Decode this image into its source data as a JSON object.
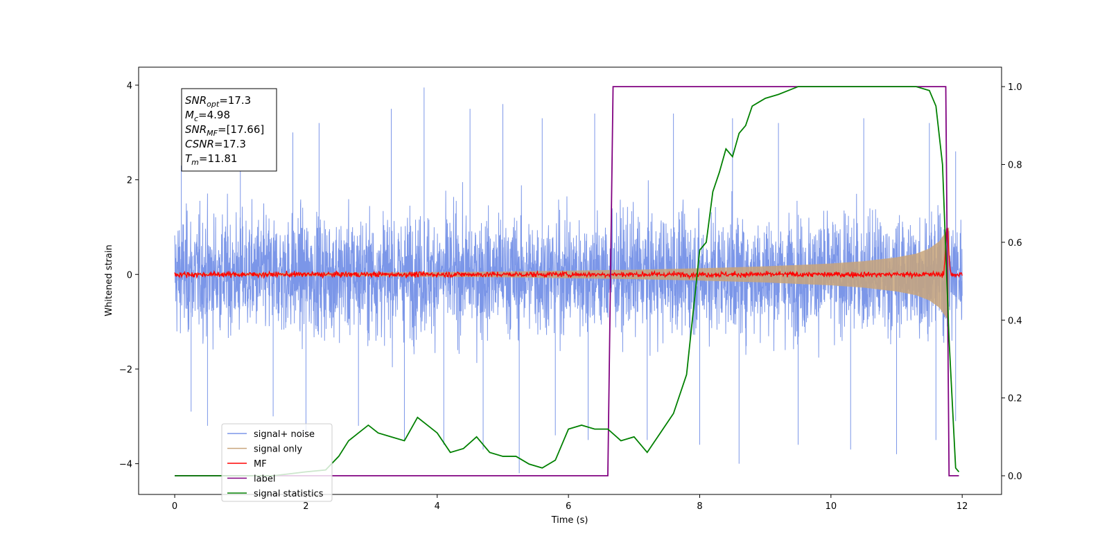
{
  "chart_data": {
    "type": "line",
    "xlabel": "Time (s)",
    "ylabel": "Whitened strain",
    "xlim": [
      -0.55,
      12.6
    ],
    "ylim": [
      -4.65,
      4.38
    ],
    "y2lim": [
      -0.048,
      1.05
    ],
    "x_ticks": [
      0,
      2,
      4,
      6,
      8,
      10,
      12
    ],
    "x_tick_labels": [
      "0",
      "2",
      "4",
      "6",
      "8",
      "10",
      "12"
    ],
    "y_ticks": [
      -4,
      -2,
      0,
      2,
      4
    ],
    "y_tick_labels": [
      "−4",
      "−2",
      "0",
      "2",
      "4"
    ],
    "y2_ticks": [
      0.0,
      0.2,
      0.4,
      0.6,
      0.8,
      1.0
    ],
    "y2_tick_labels": [
      "0.0",
      "0.2",
      "0.4",
      "0.6",
      "0.8",
      "1.0"
    ],
    "grid": false,
    "legend_placement": "lower-left",
    "annotation": {
      "lines": [
        {
          "name": "SNR",
          "sub": "opt",
          "value": "=17.3"
        },
        {
          "name": "M",
          "sub": "c",
          "value": "=4.98"
        },
        {
          "name": "SNR",
          "sub": "MF",
          "value": "=[17.66]"
        },
        {
          "name": "CSNR",
          "sub": "",
          "value": "=17.3"
        },
        {
          "name": "T",
          "sub": "m",
          "value": "=11.81"
        }
      ]
    },
    "series": [
      {
        "name": "signal+ noise",
        "color": "#7b96e8",
        "axis": "left",
        "description_range": [
          -4.2,
          4.0
        ],
        "x_range": [
          0,
          12
        ],
        "positive_peaks": [
          [
            0.1,
            2.3
          ],
          [
            1.0,
            3.3
          ],
          [
            1.8,
            3.0
          ],
          [
            2.2,
            3.2
          ],
          [
            3.3,
            3.5
          ],
          [
            3.8,
            3.95
          ],
          [
            4.5,
            3.5
          ],
          [
            5.0,
            3.6
          ],
          [
            5.6,
            3.3
          ],
          [
            6.4,
            3.4
          ],
          [
            7.6,
            3.4
          ],
          [
            8.5,
            3.3
          ],
          [
            9.2,
            3.2
          ],
          [
            10.5,
            3.3
          ],
          [
            11.5,
            3.2
          ],
          [
            11.9,
            2.6
          ]
        ],
        "negative_peaks": [
          [
            0.25,
            -2.9
          ],
          [
            0.5,
            -3.2
          ],
          [
            1.5,
            -3.0
          ],
          [
            2.0,
            -3.4
          ],
          [
            2.8,
            -3.2
          ],
          [
            3.5,
            -3.5
          ],
          [
            4.1,
            -3.6
          ],
          [
            4.7,
            -3.7
          ],
          [
            5.25,
            -4.2
          ],
          [
            5.8,
            -3.4
          ],
          [
            6.3,
            -3.5
          ],
          [
            7.2,
            -3.5
          ],
          [
            8.0,
            -3.6
          ],
          [
            8.6,
            -4.0
          ],
          [
            9.5,
            -3.6
          ],
          [
            10.3,
            -3.7
          ],
          [
            11.0,
            -3.8
          ],
          [
            11.6,
            -3.5
          ],
          [
            11.9,
            -3.1
          ]
        ]
      },
      {
        "name": "signal only",
        "color": "#c8a47a",
        "axis": "left",
        "x": [
          0,
          1,
          2,
          3,
          4,
          5,
          6,
          7,
          8,
          9,
          10,
          10.5,
          11,
          11.3,
          11.5,
          11.65,
          11.75,
          11.8
        ],
        "y_envelope": [
          0.02,
          0.03,
          0.035,
          0.04,
          0.05,
          0.06,
          0.08,
          0.1,
          0.13,
          0.17,
          0.23,
          0.28,
          0.36,
          0.44,
          0.55,
          0.7,
          0.9,
          1.0
        ]
      },
      {
        "name": "MF",
        "color": "#ff0000",
        "axis": "left",
        "x_range": [
          0,
          12
        ],
        "baseline": 0.0,
        "spread": 0.08,
        "peak": [
          11.77,
          1.0
        ]
      },
      {
        "name": "label",
        "color": "#800080",
        "axis": "right",
        "x": [
          0,
          6.6,
          6.68,
          11.75,
          11.8,
          11.95
        ],
        "y": [
          0,
          0,
          1,
          1,
          0,
          0
        ]
      },
      {
        "name": "signal statistics",
        "color": "#008000",
        "axis": "right",
        "x": [
          0,
          0.5,
          1.0,
          1.5,
          2.0,
          2.3,
          2.5,
          2.65,
          2.8,
          2.95,
          3.1,
          3.3,
          3.5,
          3.7,
          3.85,
          4.0,
          4.2,
          4.4,
          4.6,
          4.8,
          5.0,
          5.2,
          5.4,
          5.6,
          5.8,
          6.0,
          6.2,
          6.4,
          6.6,
          6.8,
          7.0,
          7.2,
          7.4,
          7.6,
          7.8,
          8.0,
          8.1,
          8.2,
          8.3,
          8.4,
          8.5,
          8.6,
          8.7,
          8.8,
          8.9,
          9.0,
          9.2,
          9.5,
          10.0,
          10.5,
          11.0,
          11.3,
          11.5,
          11.6,
          11.7,
          11.8,
          11.9,
          11.95
        ],
        "y": [
          0.0,
          0.0,
          0.0,
          0.0,
          0.01,
          0.015,
          0.05,
          0.09,
          0.11,
          0.13,
          0.11,
          0.1,
          0.09,
          0.15,
          0.13,
          0.11,
          0.06,
          0.07,
          0.1,
          0.06,
          0.05,
          0.05,
          0.03,
          0.02,
          0.04,
          0.12,
          0.13,
          0.12,
          0.12,
          0.09,
          0.1,
          0.06,
          0.11,
          0.16,
          0.26,
          0.58,
          0.6,
          0.73,
          0.78,
          0.84,
          0.82,
          0.88,
          0.9,
          0.95,
          0.96,
          0.97,
          0.98,
          1.0,
          1.0,
          1.0,
          1.0,
          1.0,
          0.99,
          0.95,
          0.8,
          0.35,
          0.02,
          0.01
        ]
      }
    ]
  }
}
